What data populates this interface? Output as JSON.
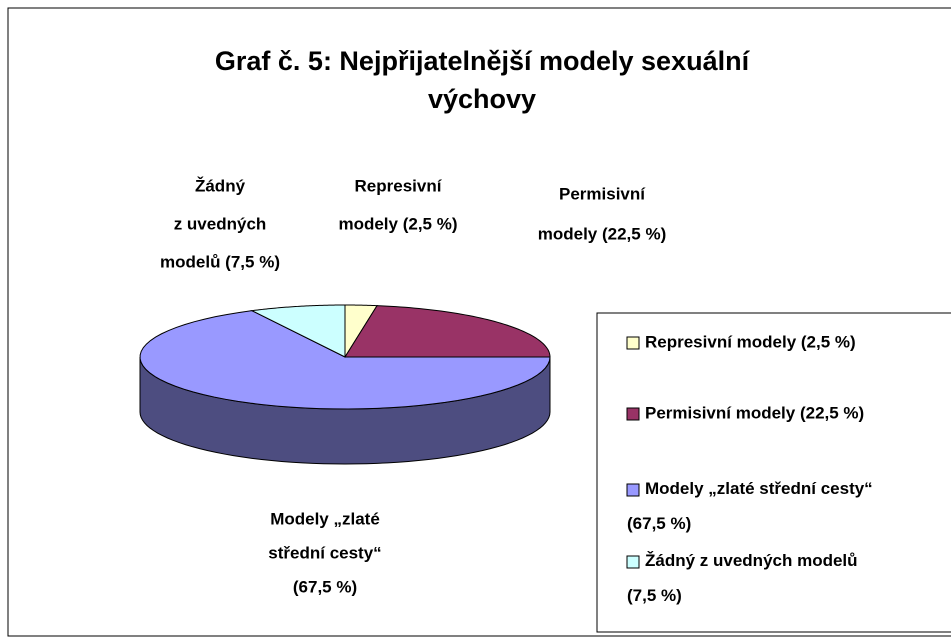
{
  "chart_data": {
    "type": "pie3d",
    "title": "Graf č. 5: Nejpřijatelnější modely sexuální výchovy",
    "categories": [
      "Represivní modely (2,5 %)",
      "Permisivní  modely (22,5 %)",
      "Modely „zlaté střední cesty“ (67,5 %)",
      "Žádný z uvedných modelů (7,5 %)"
    ],
    "values": [
      2.5,
      22.5,
      67.5,
      7.5
    ],
    "colors": [
      "#ffffcc",
      "#993366",
      "#9999ff",
      "#ccffff"
    ],
    "labels": [
      [
        "Represivní",
        "modely (2,5 %)"
      ],
      [
        "Permisivní",
        "modely (22,5 %)"
      ],
      [
        "Modely „zlaté",
        "střední cesty“",
        "(67,5 %)"
      ],
      [
        "Žádný",
        "z uvedných",
        "modelů (7,5 %)"
      ]
    ],
    "legend": "right"
  }
}
